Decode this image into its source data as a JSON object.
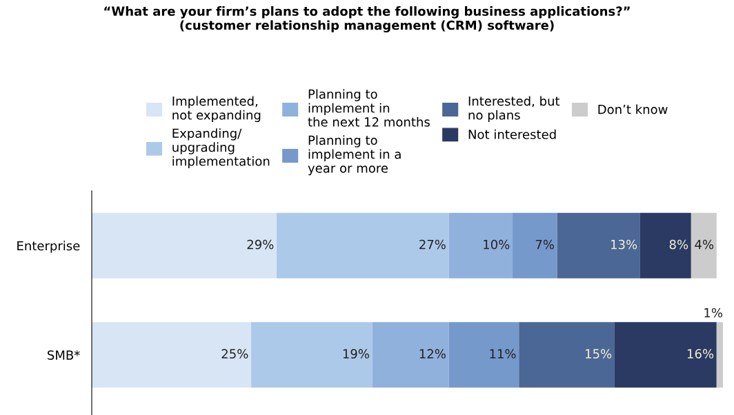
{
  "chart_data": {
    "type": "bar",
    "orientation": "horizontal",
    "stacked": true,
    "title": "“What are your firm’s plans to adopt the following business applications?”\n(customer relationship management (CRM) software)",
    "categories": [
      "Enterprise",
      "SMB*"
    ],
    "legend": "top",
    "series": [
      {
        "name": "Implemented,\nnot expanding",
        "color": "#d7e5f5",
        "values": [
          29,
          25
        ],
        "value_labels": [
          "29%",
          "25%"
        ]
      },
      {
        "name": "Expanding/\nupgrading\nimplementation",
        "color": "#adc9e9",
        "values": [
          27,
          19
        ],
        "value_labels": [
          "27%",
          "19%"
        ]
      },
      {
        "name": "Planning to\nimplement in\nthe next 12 months",
        "color": "#91b1dd",
        "values": [
          10,
          12
        ],
        "value_labels": [
          "10%",
          "12%"
        ]
      },
      {
        "name": "Planning to\nimplement in a\nyear or more",
        "color": "#7699cc",
        "values": [
          7,
          11
        ],
        "value_labels": [
          "7%",
          "11%"
        ]
      },
      {
        "name": "Interested, but\nno plans",
        "color": "#4b6795",
        "values": [
          13,
          15
        ],
        "value_labels": [
          "13%",
          "15%"
        ]
      },
      {
        "name": "Not interested",
        "color": "#2b3a63",
        "values": [
          8,
          16
        ],
        "value_labels": [
          "8%",
          "16%"
        ]
      },
      {
        "name": "Don’t know",
        "color": "#cccccc",
        "values": [
          4,
          1
        ],
        "value_labels": [
          "4%",
          "1%"
        ]
      }
    ]
  }
}
